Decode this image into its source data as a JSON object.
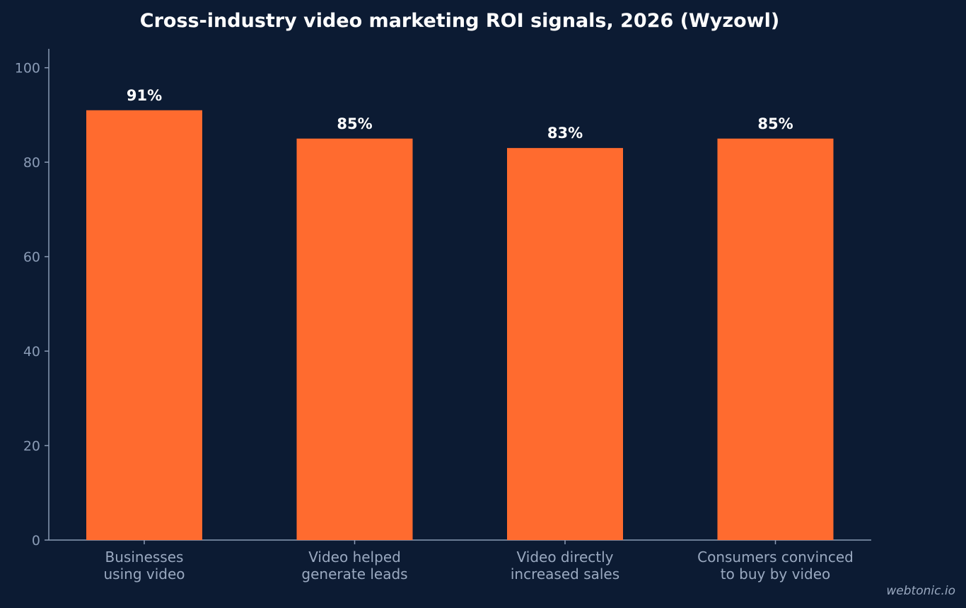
{
  "chart_data": {
    "type": "bar",
    "title": "Cross-industry video marketing ROI signals, 2026 (Wyzowl)",
    "categories": [
      [
        "Businesses",
        "using video"
      ],
      [
        "Video helped",
        "generate leads"
      ],
      [
        "Video directly",
        "increased sales"
      ],
      [
        "Consumers convinced",
        "to buy by video"
      ]
    ],
    "values": [
      91,
      85,
      83,
      85
    ],
    "data_labels": [
      "91%",
      "85%",
      "83%",
      "85%"
    ],
    "xlabel": "",
    "ylabel": "",
    "ylim": [
      0,
      104
    ],
    "yticks": [
      0,
      20,
      40,
      60,
      80,
      100
    ],
    "grid": false,
    "bar_color": "#ff6b2f",
    "axis_color": "#8a9bb5"
  },
  "watermark": "webtonic.io"
}
